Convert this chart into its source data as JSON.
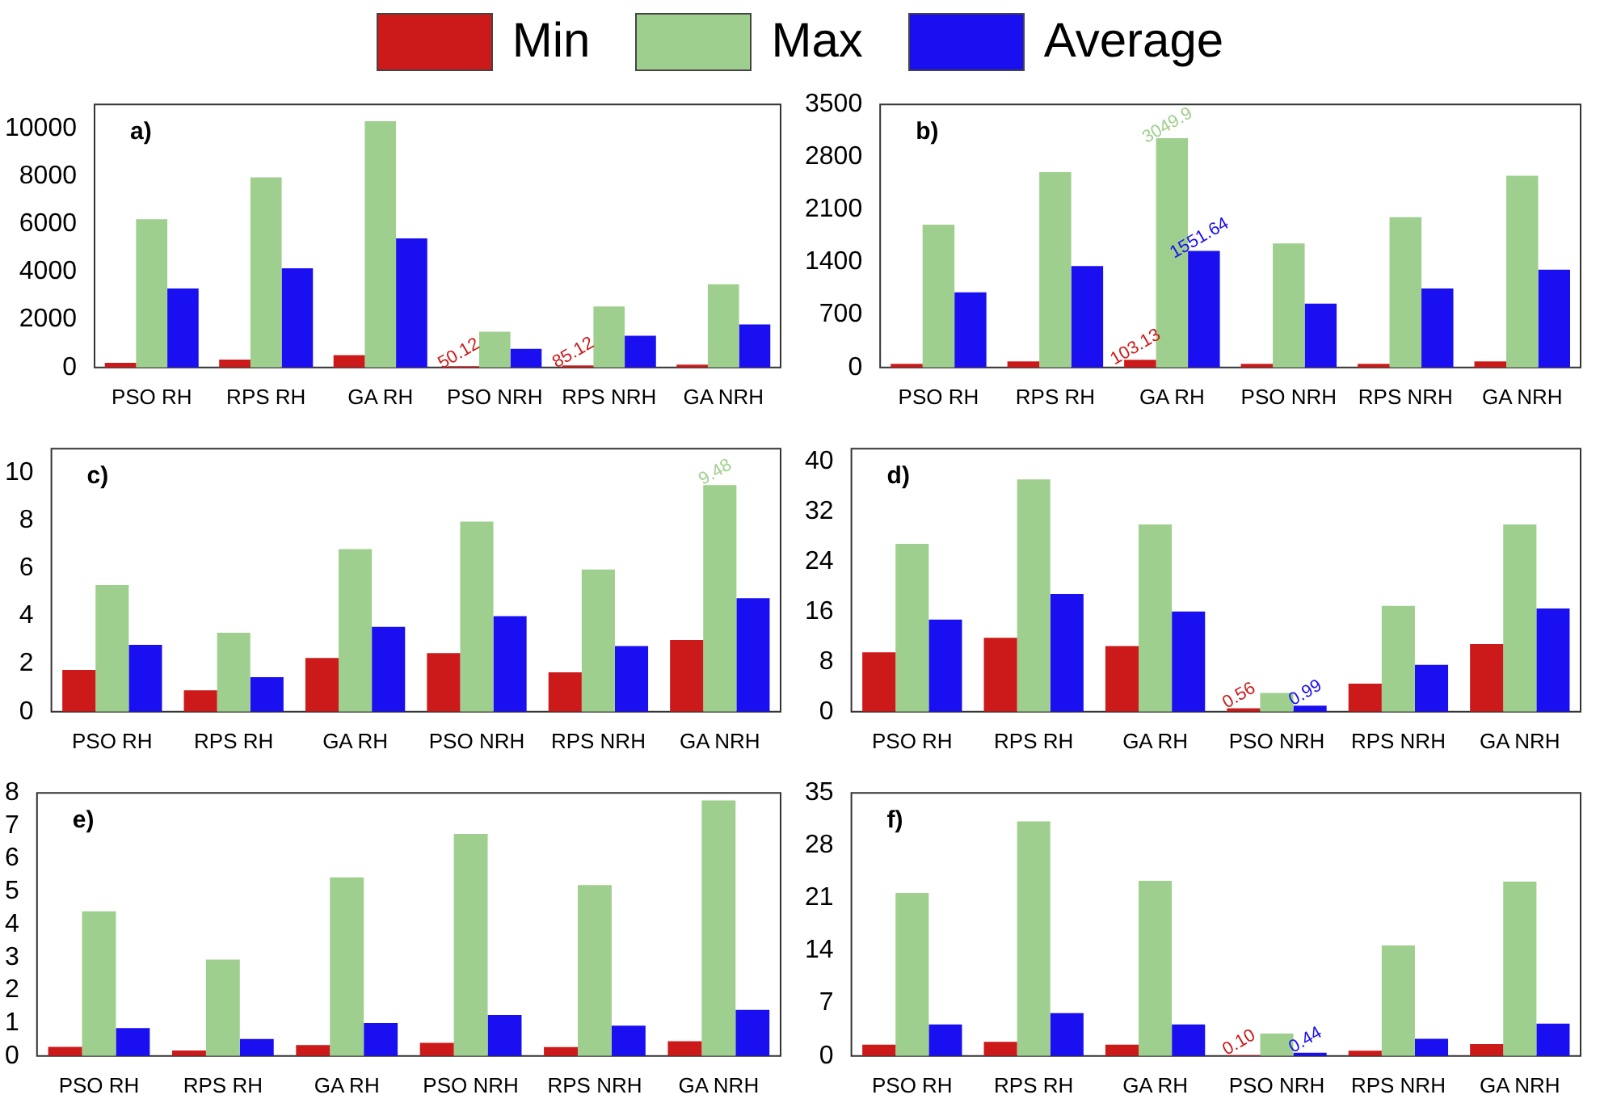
{
  "chart_data": [
    {
      "type": "bar",
      "annotations": [
        "a)"
      ],
      "categories": [
        "PSO RH",
        "RPS RH",
        "GA RH",
        "PSO NRH",
        "RPS NRH",
        "GA NRH"
      ],
      "ylim": [
        0,
        11000
      ],
      "yticks": [
        0,
        2000,
        4000,
        6000,
        8000,
        10000
      ],
      "grid": false,
      "legend": "top",
      "series": [
        {
          "name": "Min",
          "color": "#cc1a1a",
          "values": [
            200,
            330,
            520,
            50.12,
            85.12,
            120
          ],
          "value_labels": [
            null,
            null,
            null,
            "50.12",
            "85.12",
            null
          ]
        },
        {
          "name": "Max",
          "color": "#9fcf8e",
          "values": [
            6200,
            7950,
            10300,
            1500,
            2550,
            3480
          ]
        },
        {
          "name": "Average",
          "color": "#1a0ff0",
          "values": [
            3300,
            4150,
            5400,
            780,
            1330,
            1800
          ]
        }
      ]
    },
    {
      "type": "bar",
      "annotations": [
        "b)"
      ],
      "categories": [
        "PSO RH",
        "RPS RH",
        "GA RH",
        "PSO NRH",
        "RPS NRH",
        "GA NRH"
      ],
      "ylim": [
        0,
        3500
      ],
      "yticks": [
        0,
        700,
        1400,
        2100,
        2800,
        3500
      ],
      "grid": false,
      "series": [
        {
          "color": "#cc1a1a",
          "values": [
            50,
            80,
            103.13,
            50,
            50,
            80
          ],
          "value_labels": [
            null,
            null,
            "103.13",
            null,
            null,
            null
          ]
        },
        {
          "color": "#9fcf8e",
          "values": [
            1900,
            2600,
            3049.9,
            1650,
            2000,
            2550
          ],
          "value_labels": [
            null,
            null,
            "3049.9",
            null,
            null,
            null
          ]
        },
        {
          "color": "#1a0ff0",
          "values": [
            1000,
            1350,
            1551.64,
            850,
            1050,
            1300
          ],
          "value_labels": [
            null,
            null,
            "1551.64",
            null,
            null,
            null
          ]
        }
      ]
    },
    {
      "type": "bar",
      "annotations": [
        "c)"
      ],
      "categories": [
        "PSO RH",
        "RPS RH",
        "GA RH",
        "PSO NRH",
        "RPS NRH",
        "GA NRH"
      ],
      "ylim": [
        0,
        11
      ],
      "yticks": [
        0,
        2,
        4,
        6,
        8,
        10
      ],
      "grid": false,
      "series": [
        {
          "color": "#cc1a1a",
          "values": [
            1.75,
            0.9,
            2.25,
            2.45,
            1.65,
            3.0
          ]
        },
        {
          "color": "#9fcf8e",
          "values": [
            5.3,
            3.3,
            6.8,
            7.95,
            5.95,
            9.48
          ],
          "value_labels": [
            null,
            null,
            null,
            null,
            null,
            "9.48"
          ]
        },
        {
          "color": "#1a0ff0",
          "values": [
            2.8,
            1.45,
            3.55,
            4.0,
            2.75,
            4.75
          ]
        }
      ]
    },
    {
      "type": "bar",
      "annotations": [
        "d)"
      ],
      "categories": [
        "PSO RH",
        "RPS RH",
        "GA RH",
        "PSO NRH",
        "RPS NRH",
        "GA NRH"
      ],
      "ylim": [
        0,
        42
      ],
      "yticks": [
        0,
        8,
        16,
        24,
        32,
        40
      ],
      "grid": false,
      "series": [
        {
          "color": "#cc1a1a",
          "values": [
            9.5,
            11.8,
            10.5,
            0.56,
            4.5,
            10.8
          ],
          "value_labels": [
            null,
            null,
            null,
            "0.56",
            null,
            null
          ]
        },
        {
          "color": "#9fcf8e",
          "values": [
            26.8,
            37.1,
            29.9,
            3.0,
            16.9,
            29.9
          ]
        },
        {
          "color": "#1a0ff0",
          "values": [
            14.7,
            18.8,
            16.0,
            0.99,
            7.5,
            16.5
          ],
          "value_labels": [
            null,
            null,
            null,
            "0.99",
            null,
            null
          ]
        }
      ]
    },
    {
      "type": "bar",
      "annotations": [
        "e)"
      ],
      "categories": [
        "PSO RH",
        "RPS RH",
        "GA RH",
        "PSO NRH",
        "RPS NRH",
        "GA NRH"
      ],
      "ylim": [
        0,
        8
      ],
      "yticks": [
        0,
        1,
        2,
        3,
        4,
        5,
        6,
        7,
        8
      ],
      "grid": false,
      "series": [
        {
          "color": "#cc1a1a",
          "values": [
            0.28,
            0.17,
            0.33,
            0.4,
            0.27,
            0.45
          ]
        },
        {
          "color": "#9fcf8e",
          "values": [
            4.4,
            2.93,
            5.43,
            6.75,
            5.2,
            7.77
          ]
        },
        {
          "color": "#1a0ff0",
          "values": [
            0.85,
            0.52,
            1.0,
            1.25,
            0.92,
            1.4
          ]
        }
      ]
    },
    {
      "type": "bar",
      "annotations": [
        "f)"
      ],
      "categories": [
        "PSO RH",
        "RPS RH",
        "GA RH",
        "PSO NRH",
        "RPS NRH",
        "GA NRH"
      ],
      "ylim": [
        0,
        35
      ],
      "yticks": [
        0,
        7,
        14,
        21,
        28,
        35
      ],
      "grid": false,
      "series": [
        {
          "color": "#cc1a1a",
          "values": [
            1.5,
            1.9,
            1.5,
            0.1,
            0.7,
            1.6
          ],
          "value_labels": [
            null,
            null,
            null,
            "0.10",
            null,
            null
          ]
        },
        {
          "color": "#9fcf8e",
          "values": [
            21.7,
            31.2,
            23.3,
            3.0,
            14.7,
            23.2
          ]
        },
        {
          "color": "#1a0ff0",
          "values": [
            4.2,
            5.7,
            4.2,
            0.44,
            2.3,
            4.3
          ],
          "value_labels": [
            null,
            null,
            null,
            "0.44",
            null,
            null
          ]
        }
      ]
    }
  ]
}
